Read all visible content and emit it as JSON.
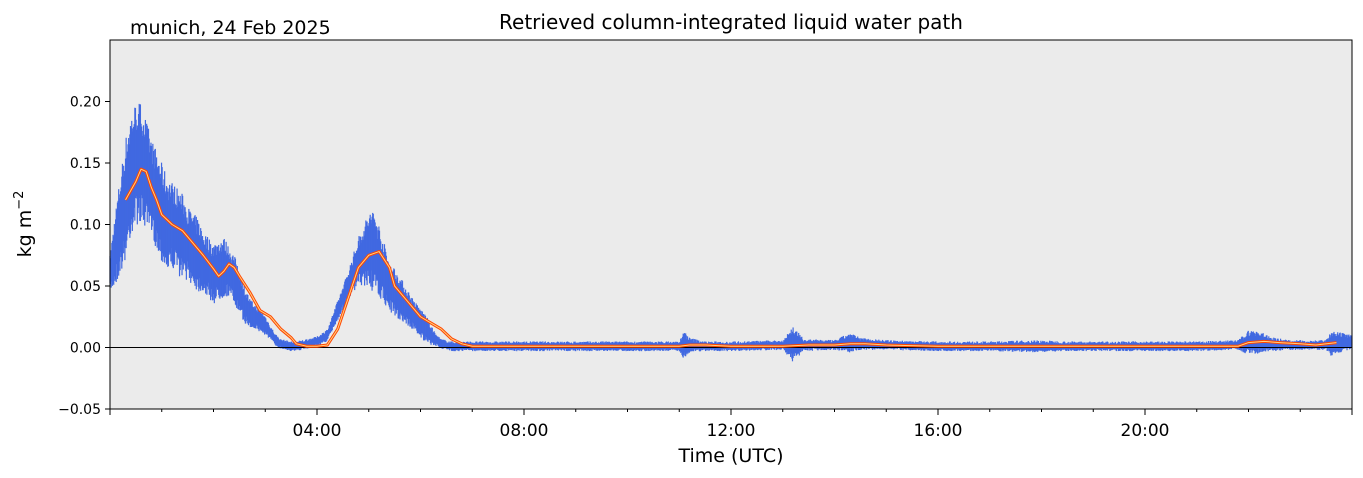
{
  "chart_data": {
    "type": "scatter",
    "title": "Retrieved column-integrated liquid water path",
    "subtitle": "munich, 24 Feb 2025",
    "xlabel": "Time (UTC)",
    "ylabel": "kg m",
    "ylabel_sup": "−2",
    "xlim_hours": [
      0,
      24
    ],
    "ylim": [
      -0.05,
      0.25
    ],
    "yticks": [
      -0.05,
      0.0,
      0.05,
      0.1,
      0.15,
      0.2
    ],
    "ytick_labels": [
      "−0.05",
      "0.00",
      "0.05",
      "0.10",
      "0.15",
      "0.20"
    ],
    "xticks_hours": [
      4,
      8,
      12,
      16,
      20
    ],
    "xtick_labels": [
      "04:00",
      "08:00",
      "12:00",
      "16:00",
      "20:00"
    ],
    "zero_line": true,
    "grid": false,
    "colors": {
      "background": "#ebebeb",
      "raw": "#4169e1",
      "smoothed_outer": "#ff4500",
      "smoothed_inner": "#ffd27f",
      "zero_line": "#000000"
    },
    "series": [
      {
        "kind": "raw-retrieval",
        "x_hours": [
          0.0,
          0.1,
          0.2,
          0.3,
          0.4,
          0.5,
          0.6,
          0.7,
          0.8,
          0.9,
          1.0,
          1.1,
          1.2,
          1.3,
          1.4,
          1.5,
          1.6,
          1.7,
          1.8,
          1.9,
          2.0,
          2.1,
          2.2,
          2.3,
          2.4,
          2.5,
          2.6,
          2.7,
          2.8,
          2.9,
          3.0,
          3.1,
          3.2,
          3.3,
          3.4,
          3.5,
          3.6,
          3.7,
          3.8,
          3.9,
          4.0,
          4.2,
          4.4,
          4.6,
          4.8,
          5.0,
          5.1,
          5.2,
          5.3,
          5.4,
          5.5,
          5.6,
          5.7,
          5.8,
          5.9,
          6.0,
          6.1,
          6.2,
          6.3,
          6.4,
          6.5,
          6.6,
          6.7,
          6.8,
          6.9,
          7.0,
          7.5,
          8.0,
          9.0,
          10.0,
          11.0,
          11.1,
          11.2,
          11.5,
          12.0,
          13.0,
          13.2,
          13.4,
          14.0,
          14.3,
          14.5,
          15.0,
          16.0,
          17.0,
          17.9,
          18.5,
          19.0,
          19.4,
          20.0,
          21.0,
          21.8,
          22.0,
          22.2,
          22.4,
          22.8,
          23.2,
          23.5,
          23.6,
          23.8,
          24.0
        ],
        "y_mid": [
          0.06,
          0.08,
          0.1,
          0.12,
          0.14,
          0.15,
          0.15,
          0.14,
          0.13,
          0.12,
          0.11,
          0.1,
          0.1,
          0.095,
          0.09,
          0.085,
          0.08,
          0.075,
          0.07,
          0.065,
          0.06,
          0.063,
          0.065,
          0.062,
          0.055,
          0.045,
          0.035,
          0.028,
          0.025,
          0.022,
          0.018,
          0.012,
          0.006,
          0.003,
          0.002,
          0.001,
          0.001,
          0.002,
          0.003,
          0.004,
          0.005,
          0.01,
          0.03,
          0.05,
          0.07,
          0.08,
          0.078,
          0.07,
          0.06,
          0.05,
          0.045,
          0.04,
          0.035,
          0.03,
          0.025,
          0.02,
          0.015,
          0.01,
          0.006,
          0.003,
          0.002,
          0.001,
          0.001,
          0.001,
          0.001,
          0.001,
          0.001,
          0.001,
          0.001,
          0.001,
          0.001,
          0.002,
          0.002,
          0.001,
          0.001,
          0.002,
          0.003,
          0.002,
          0.002,
          0.004,
          0.003,
          0.002,
          0.001,
          0.001,
          0.001,
          0.001,
          0.001,
          0.001,
          0.001,
          0.001,
          0.002,
          0.004,
          0.004,
          0.003,
          0.002,
          0.002,
          0.002,
          0.003,
          0.004,
          0.004
        ],
        "y_spread": [
          0.015,
          0.03,
          0.04,
          0.05,
          0.05,
          0.05,
          0.05,
          0.045,
          0.04,
          0.04,
          0.04,
          0.04,
          0.035,
          0.035,
          0.035,
          0.03,
          0.03,
          0.03,
          0.025,
          0.025,
          0.025,
          0.025,
          0.025,
          0.02,
          0.02,
          0.02,
          0.015,
          0.012,
          0.01,
          0.01,
          0.008,
          0.006,
          0.005,
          0.004,
          0.004,
          0.004,
          0.004,
          0.004,
          0.004,
          0.004,
          0.004,
          0.005,
          0.008,
          0.012,
          0.02,
          0.03,
          0.035,
          0.03,
          0.025,
          0.02,
          0.02,
          0.018,
          0.016,
          0.014,
          0.012,
          0.012,
          0.012,
          0.008,
          0.005,
          0.004,
          0.004,
          0.004,
          0.004,
          0.004,
          0.004,
          0.004,
          0.004,
          0.004,
          0.004,
          0.004,
          0.004,
          0.012,
          0.006,
          0.004,
          0.004,
          0.004,
          0.015,
          0.005,
          0.004,
          0.008,
          0.005,
          0.004,
          0.004,
          0.004,
          0.005,
          0.004,
          0.004,
          0.004,
          0.004,
          0.004,
          0.004,
          0.01,
          0.01,
          0.006,
          0.004,
          0.004,
          0.004,
          0.01,
          0.008,
          0.006
        ]
      },
      {
        "kind": "smoothed",
        "x_hours": [
          0.3,
          0.5,
          0.6,
          0.7,
          0.8,
          0.9,
          1.0,
          1.2,
          1.4,
          1.6,
          1.8,
          2.0,
          2.1,
          2.2,
          2.3,
          2.4,
          2.5,
          2.7,
          2.9,
          3.1,
          3.3,
          3.5,
          3.6,
          3.8,
          4.0,
          4.2,
          4.4,
          4.6,
          4.8,
          5.0,
          5.2,
          5.4,
          5.5,
          5.6,
          5.8,
          6.0,
          6.2,
          6.4,
          6.6,
          6.8,
          7.0,
          8.0,
          9.0,
          10.0,
          11.0,
          11.2,
          11.5,
          12.0,
          13.0,
          13.5,
          14.0,
          14.3,
          14.6,
          15.0,
          16.0,
          17.0,
          18.0,
          19.0,
          20.0,
          21.0,
          21.8,
          22.0,
          22.3,
          22.6,
          23.0,
          23.3,
          23.7
        ],
        "y": [
          0.12,
          0.135,
          0.145,
          0.143,
          0.13,
          0.12,
          0.108,
          0.1,
          0.095,
          0.085,
          0.075,
          0.064,
          0.058,
          0.062,
          0.068,
          0.065,
          0.058,
          0.045,
          0.03,
          0.025,
          0.015,
          0.008,
          0.003,
          0.001,
          0.001,
          0.002,
          0.015,
          0.04,
          0.065,
          0.075,
          0.078,
          0.065,
          0.05,
          0.045,
          0.035,
          0.025,
          0.02,
          0.015,
          0.007,
          0.003,
          0.001,
          0.001,
          0.001,
          0.001,
          0.001,
          0.002,
          0.002,
          0.001,
          0.001,
          0.002,
          0.002,
          0.003,
          0.003,
          0.002,
          0.001,
          0.001,
          0.001,
          0.001,
          0.001,
          0.001,
          0.001,
          0.004,
          0.005,
          0.004,
          0.003,
          0.002,
          0.004
        ]
      }
    ]
  }
}
